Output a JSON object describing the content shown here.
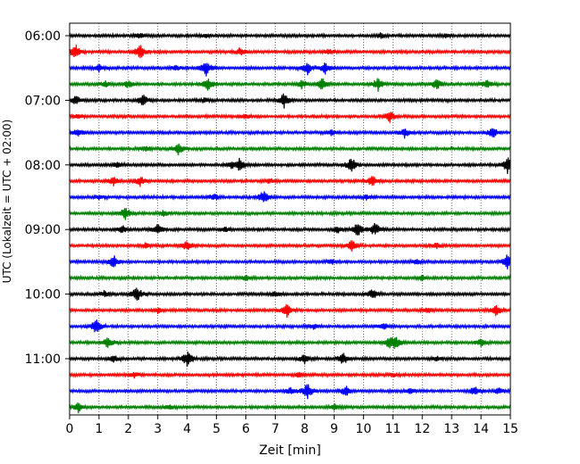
{
  "chart_data": {
    "type": "line",
    "title": "",
    "xlabel": "Zeit  [min]",
    "ylabel": "UTC (Lokalzeit = UTC + 02:00)",
    "xlim": [
      0,
      15
    ],
    "x_ticks": [
      0,
      1,
      2,
      3,
      4,
      5,
      6,
      7,
      8,
      9,
      10,
      11,
      12,
      13,
      14,
      15
    ],
    "x_tick_labels": [
      "0",
      "1",
      "2",
      "3",
      "4",
      "5",
      "6",
      "7",
      "8",
      "9",
      "10",
      "11",
      "12",
      "13",
      "14",
      "15"
    ],
    "y_tick_labels": [
      "06:00",
      "07:00",
      "08:00",
      "09:00",
      "10:00",
      "11:00"
    ],
    "grid_x": true,
    "grid_style": "dotted",
    "trace_interval_minutes": 15,
    "series": [
      {
        "start": "06:00",
        "color": "#000000",
        "events": [
          [
            2.4,
            0.35
          ],
          [
            4.6,
            0.25
          ],
          [
            10.6,
            0.3
          ],
          [
            12.8,
            0.2
          ]
        ]
      },
      {
        "start": "06:15",
        "color": "#ff0000",
        "events": [
          [
            0.2,
            0.9
          ],
          [
            2.4,
            0.9
          ],
          [
            5.8,
            0.5
          ],
          [
            8.8,
            0.3
          ]
        ]
      },
      {
        "start": "06:30",
        "color": "#0000ff",
        "events": [
          [
            1.0,
            0.5
          ],
          [
            4.65,
            0.95
          ],
          [
            8.1,
            0.8
          ],
          [
            8.7,
            0.7
          ],
          [
            3.6,
            0.3
          ]
        ]
      },
      {
        "start": "06:45",
        "color": "#008000",
        "events": [
          [
            1.2,
            0.4
          ],
          [
            2.0,
            0.5
          ],
          [
            4.7,
            0.8
          ],
          [
            7.9,
            0.5
          ],
          [
            8.6,
            0.9
          ],
          [
            10.5,
            0.8
          ],
          [
            12.5,
            0.7
          ],
          [
            14.2,
            0.5
          ]
        ]
      },
      {
        "start": "07:00",
        "color": "#000000",
        "events": [
          [
            0.2,
            0.6
          ],
          [
            2.5,
            0.8
          ],
          [
            7.3,
            0.95
          ],
          [
            4.6,
            0.3
          ]
        ]
      },
      {
        "start": "07:15",
        "color": "#ff0000",
        "events": [
          [
            0.3,
            0.3
          ],
          [
            10.9,
            0.8
          ],
          [
            6.0,
            0.3
          ]
        ]
      },
      {
        "start": "07:30",
        "color": "#0000ff",
        "events": [
          [
            0.3,
            0.5
          ],
          [
            11.4,
            0.6
          ],
          [
            14.4,
            0.7
          ],
          [
            8.9,
            0.3
          ]
        ]
      },
      {
        "start": "07:45",
        "color": "#008000",
        "events": [
          [
            3.7,
            0.8
          ],
          [
            2.6,
            0.3
          ]
        ]
      },
      {
        "start": "08:00",
        "color": "#000000",
        "events": [
          [
            5.8,
            0.9
          ],
          [
            9.6,
            0.9
          ],
          [
            14.9,
            1.0
          ],
          [
            1.6,
            0.3
          ],
          [
            5.5,
            0.4
          ]
        ]
      },
      {
        "start": "08:15",
        "color": "#ff0000",
        "events": [
          [
            1.5,
            0.5
          ],
          [
            2.4,
            0.6
          ],
          [
            10.3,
            0.7
          ],
          [
            6.8,
            0.3
          ]
        ]
      },
      {
        "start": "08:30",
        "color": "#0000ff",
        "events": [
          [
            6.6,
            0.8
          ],
          [
            4.9,
            0.4
          ],
          [
            1.0,
            0.3
          ],
          [
            10.1,
            0.3
          ]
        ]
      },
      {
        "start": "08:45",
        "color": "#008000",
        "events": [
          [
            1.9,
            0.8
          ],
          [
            3.2,
            0.3
          ]
        ]
      },
      {
        "start": "09:00",
        "color": "#000000",
        "events": [
          [
            3.0,
            0.8
          ],
          [
            9.8,
            0.9
          ],
          [
            10.4,
            0.9
          ],
          [
            1.8,
            0.5
          ],
          [
            5.3,
            0.3
          ],
          [
            9.1,
            0.4
          ]
        ]
      },
      {
        "start": "09:15",
        "color": "#ff0000",
        "events": [
          [
            4.0,
            0.7
          ],
          [
            9.6,
            0.7
          ],
          [
            2.6,
            0.3
          ],
          [
            12.5,
            0.3
          ]
        ]
      },
      {
        "start": "09:30",
        "color": "#0000ff",
        "events": [
          [
            1.5,
            0.8
          ],
          [
            14.9,
            0.9
          ],
          [
            8.9,
            0.3
          ],
          [
            11.8,
            0.3
          ]
        ]
      },
      {
        "start": "09:45",
        "color": "#008000",
        "events": [
          [
            6.0,
            0.3
          ],
          [
            12.0,
            0.3
          ]
        ]
      },
      {
        "start": "10:00",
        "color": "#000000",
        "events": [
          [
            2.3,
            0.95
          ],
          [
            10.3,
            0.7
          ],
          [
            1.2,
            0.4
          ],
          [
            7.0,
            0.3
          ]
        ]
      },
      {
        "start": "10:15",
        "color": "#ff0000",
        "events": [
          [
            7.4,
            0.8
          ],
          [
            14.5,
            0.7
          ],
          [
            12.2,
            0.3
          ],
          [
            3.0,
            0.3
          ]
        ]
      },
      {
        "start": "10:30",
        "color": "#0000ff",
        "events": [
          [
            0.9,
            0.9
          ],
          [
            10.7,
            0.4
          ],
          [
            8.3,
            0.3
          ]
        ]
      },
      {
        "start": "10:45",
        "color": "#008000",
        "events": [
          [
            1.3,
            0.7
          ],
          [
            10.9,
            0.8
          ],
          [
            11.1,
            0.7
          ],
          [
            14.0,
            0.4
          ]
        ]
      },
      {
        "start": "11:00",
        "color": "#000000",
        "events": [
          [
            4.0,
            1.0
          ],
          [
            8.0,
            0.6
          ],
          [
            9.3,
            0.8
          ],
          [
            1.5,
            0.4
          ],
          [
            12.5,
            0.3
          ]
        ]
      },
      {
        "start": "11:15",
        "color": "#ff0000",
        "events": [
          [
            2.2,
            0.3
          ],
          [
            7.8,
            0.3
          ],
          [
            11.0,
            0.3
          ]
        ]
      },
      {
        "start": "11:30",
        "color": "#0000ff",
        "events": [
          [
            8.1,
            1.0
          ],
          [
            9.4,
            0.7
          ],
          [
            7.5,
            0.4
          ],
          [
            13.8,
            0.6
          ],
          [
            14.6,
            0.4
          ],
          [
            11.6,
            0.3
          ]
        ]
      },
      {
        "start": "11:45",
        "color": "#008000",
        "events": [
          [
            0.3,
            0.6
          ],
          [
            3.4,
            0.3
          ],
          [
            9.0,
            0.3
          ]
        ]
      }
    ]
  }
}
